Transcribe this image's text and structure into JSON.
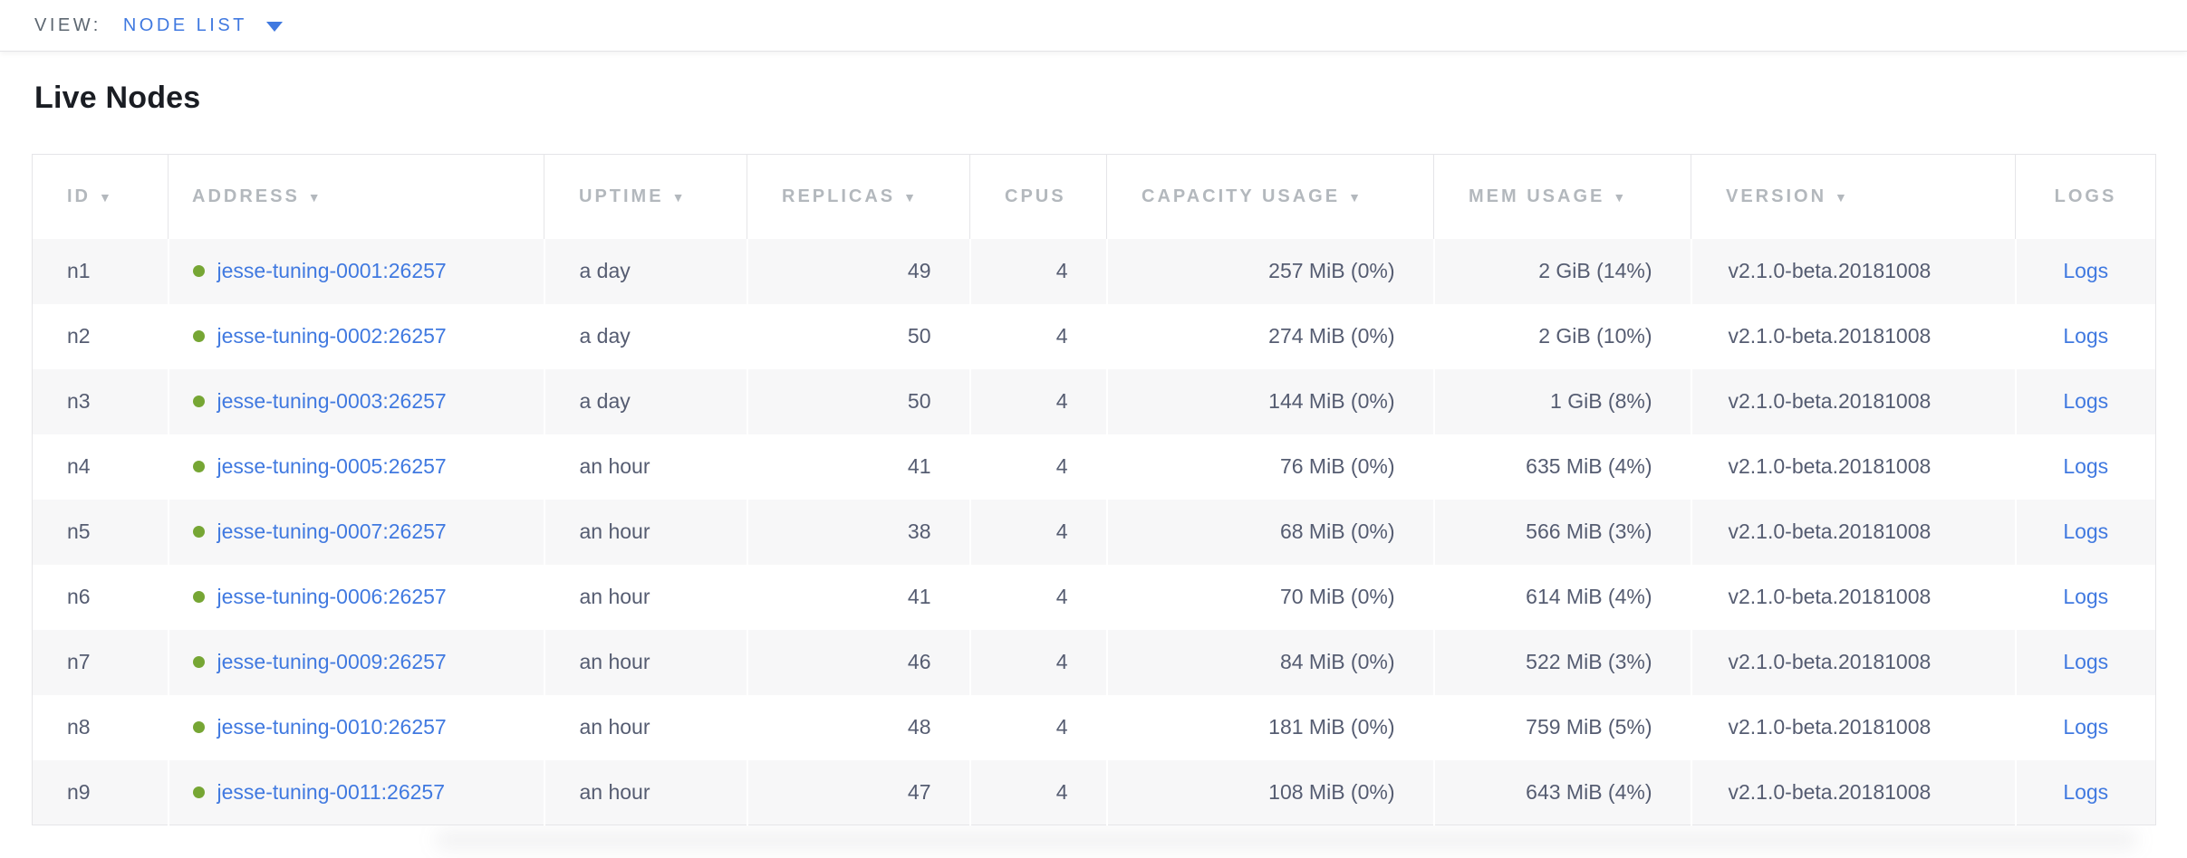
{
  "view_bar": {
    "label": "VIEW:",
    "selected": "NODE LIST"
  },
  "page": {
    "title": "Live Nodes"
  },
  "table": {
    "sort_caret": "▼",
    "columns": [
      {
        "label": "ID",
        "sortable": true
      },
      {
        "label": "ADDRESS",
        "sortable": true
      },
      {
        "label": "UPTIME",
        "sortable": true
      },
      {
        "label": "REPLICAS",
        "sortable": true
      },
      {
        "label": "CPUS",
        "sortable": false
      },
      {
        "label": "CAPACITY USAGE",
        "sortable": true
      },
      {
        "label": "MEM USAGE",
        "sortable": true
      },
      {
        "label": "VERSION",
        "sortable": true
      },
      {
        "label": "LOGS",
        "sortable": false
      }
    ],
    "rows": [
      {
        "id": "n1",
        "address": "jesse-tuning-0001:26257",
        "uptime": "a day",
        "replicas": "49",
        "cpus": "4",
        "capacity": "257 MiB (0%)",
        "mem": "2 GiB (14%)",
        "version": "v2.1.0-beta.20181008",
        "logs": "Logs"
      },
      {
        "id": "n2",
        "address": "jesse-tuning-0002:26257",
        "uptime": "a day",
        "replicas": "50",
        "cpus": "4",
        "capacity": "274 MiB (0%)",
        "mem": "2 GiB (10%)",
        "version": "v2.1.0-beta.20181008",
        "logs": "Logs"
      },
      {
        "id": "n3",
        "address": "jesse-tuning-0003:26257",
        "uptime": "a day",
        "replicas": "50",
        "cpus": "4",
        "capacity": "144 MiB (0%)",
        "mem": "1 GiB (8%)",
        "version": "v2.1.0-beta.20181008",
        "logs": "Logs"
      },
      {
        "id": "n4",
        "address": "jesse-tuning-0005:26257",
        "uptime": "an hour",
        "replicas": "41",
        "cpus": "4",
        "capacity": "76 MiB (0%)",
        "mem": "635 MiB (4%)",
        "version": "v2.1.0-beta.20181008",
        "logs": "Logs"
      },
      {
        "id": "n5",
        "address": "jesse-tuning-0007:26257",
        "uptime": "an hour",
        "replicas": "38",
        "cpus": "4",
        "capacity": "68 MiB (0%)",
        "mem": "566 MiB (3%)",
        "version": "v2.1.0-beta.20181008",
        "logs": "Logs"
      },
      {
        "id": "n6",
        "address": "jesse-tuning-0006:26257",
        "uptime": "an hour",
        "replicas": "41",
        "cpus": "4",
        "capacity": "70 MiB (0%)",
        "mem": "614 MiB (4%)",
        "version": "v2.1.0-beta.20181008",
        "logs": "Logs"
      },
      {
        "id": "n7",
        "address": "jesse-tuning-0009:26257",
        "uptime": "an hour",
        "replicas": "46",
        "cpus": "4",
        "capacity": "84 MiB (0%)",
        "mem": "522 MiB (3%)",
        "version": "v2.1.0-beta.20181008",
        "logs": "Logs"
      },
      {
        "id": "n8",
        "address": "jesse-tuning-0010:26257",
        "uptime": "an hour",
        "replicas": "48",
        "cpus": "4",
        "capacity": "181 MiB (0%)",
        "mem": "759 MiB (5%)",
        "version": "v2.1.0-beta.20181008",
        "logs": "Logs"
      },
      {
        "id": "n9",
        "address": "jesse-tuning-0011:26257",
        "uptime": "an hour",
        "replicas": "47",
        "cpus": "4",
        "capacity": "108 MiB (0%)",
        "mem": "643 MiB (4%)",
        "version": "v2.1.0-beta.20181008",
        "logs": "Logs"
      }
    ]
  },
  "colors": {
    "accent_blue": "#4079e0",
    "healthy_green": "#76a634",
    "header_gray": "#b3b8bd",
    "body_text": "#555c71",
    "row_stripe": "#f7f7f8"
  },
  "icons": {
    "healthy_status": "green-dot",
    "dropdown_caret": "triangle-down",
    "sort_indicator": "triangle-down"
  }
}
